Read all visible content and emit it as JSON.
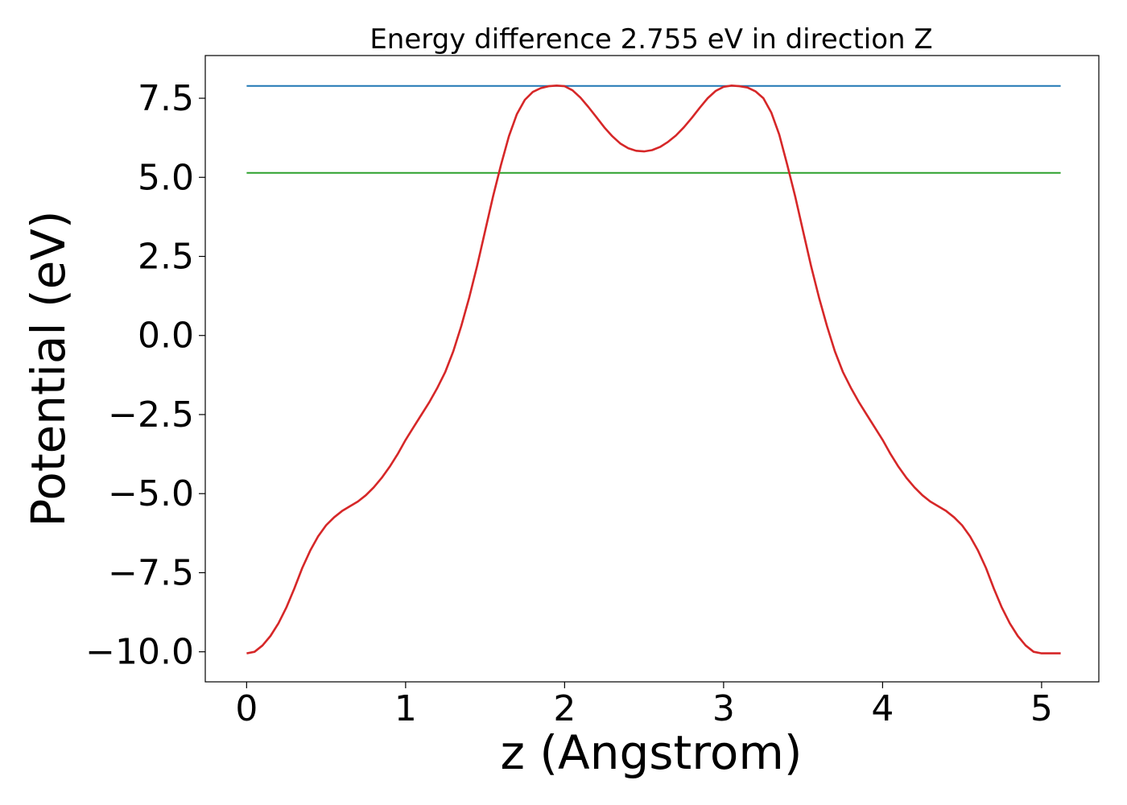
{
  "chart_data": {
    "type": "line",
    "title": "Energy difference 2.755 eV in direction Z",
    "xlabel": "z (Angstrom)",
    "ylabel": "Potential (eV)",
    "xlim": [
      -0.26,
      5.36
    ],
    "ylim": [
      -10.95,
      8.85
    ],
    "x_ticks": [
      0,
      1,
      2,
      3,
      4,
      5
    ],
    "x_tick_labels": [
      "0",
      "1",
      "2",
      "3",
      "4",
      "5"
    ],
    "y_ticks": [
      -10,
      -7.5,
      -5,
      -2.5,
      0,
      2.5,
      5,
      7.5
    ],
    "y_tick_labels": [
      "−10.0",
      "−7.5",
      "−5.0",
      "−2.5",
      "0.0",
      "2.5",
      "5.0",
      "7.5"
    ],
    "grid": false,
    "legend": "none",
    "series": [
      {
        "color": "#1f77b4",
        "x": [
          0,
          5.12
        ],
        "y": [
          7.89,
          7.89
        ]
      },
      {
        "color": "#2ca02c",
        "x": [
          0,
          5.12
        ],
        "y": [
          5.14,
          5.14
        ]
      },
      {
        "color": "#d62728",
        "x": [
          0,
          0.05,
          0.1,
          0.15,
          0.2,
          0.25,
          0.3,
          0.35,
          0.4,
          0.45,
          0.5,
          0.55,
          0.6,
          0.65,
          0.7,
          0.75,
          0.8,
          0.85,
          0.9,
          0.95,
          1.0,
          1.05,
          1.1,
          1.15,
          1.2,
          1.25,
          1.3,
          1.35,
          1.4,
          1.45,
          1.5,
          1.55,
          1.6,
          1.65,
          1.7,
          1.75,
          1.8,
          1.85,
          1.9,
          1.95,
          2.0,
          2.05,
          2.1,
          2.15,
          2.2,
          2.25,
          2.3,
          2.35,
          2.4,
          2.45,
          2.5,
          2.55,
          2.6,
          2.65,
          2.7,
          2.75,
          2.8,
          2.85,
          2.9,
          2.95,
          3.0,
          3.05,
          3.1,
          3.15,
          3.2,
          3.25,
          3.3,
          3.35,
          3.4,
          3.45,
          3.5,
          3.55,
          3.6,
          3.65,
          3.7,
          3.75,
          3.8,
          3.85,
          3.9,
          3.95,
          4.0,
          4.05,
          4.1,
          4.15,
          4.2,
          4.25,
          4.3,
          4.35,
          4.4,
          4.45,
          4.5,
          4.55,
          4.6,
          4.65,
          4.7,
          4.75,
          4.8,
          4.85,
          4.9,
          4.95,
          5.0,
          5.05,
          5.12
        ],
        "y": [
          -10.05,
          -10.0,
          -9.8,
          -9.5,
          -9.1,
          -8.6,
          -8.0,
          -7.35,
          -6.8,
          -6.35,
          -6.0,
          -5.75,
          -5.55,
          -5.4,
          -5.25,
          -5.05,
          -4.8,
          -4.5,
          -4.15,
          -3.75,
          -3.3,
          -2.9,
          -2.5,
          -2.1,
          -1.65,
          -1.15,
          -0.5,
          0.3,
          1.2,
          2.2,
          3.3,
          4.4,
          5.4,
          6.3,
          7.0,
          7.45,
          7.7,
          7.82,
          7.88,
          7.9,
          7.88,
          7.75,
          7.52,
          7.22,
          6.9,
          6.58,
          6.3,
          6.07,
          5.92,
          5.84,
          5.82,
          5.86,
          5.96,
          6.12,
          6.32,
          6.58,
          6.88,
          7.2,
          7.5,
          7.73,
          7.86,
          7.9,
          7.88,
          7.84,
          7.72,
          7.5,
          7.05,
          6.35,
          5.4,
          4.4,
          3.3,
          2.2,
          1.2,
          0.3,
          -0.5,
          -1.15,
          -1.65,
          -2.1,
          -2.5,
          -2.9,
          -3.3,
          -3.75,
          -4.15,
          -4.5,
          -4.8,
          -5.05,
          -5.25,
          -5.4,
          -5.55,
          -5.75,
          -6.0,
          -6.35,
          -6.8,
          -7.35,
          -8.0,
          -8.6,
          -9.1,
          -9.5,
          -9.8,
          -10.0,
          -10.05,
          -10.05,
          -10.05
        ]
      }
    ]
  }
}
